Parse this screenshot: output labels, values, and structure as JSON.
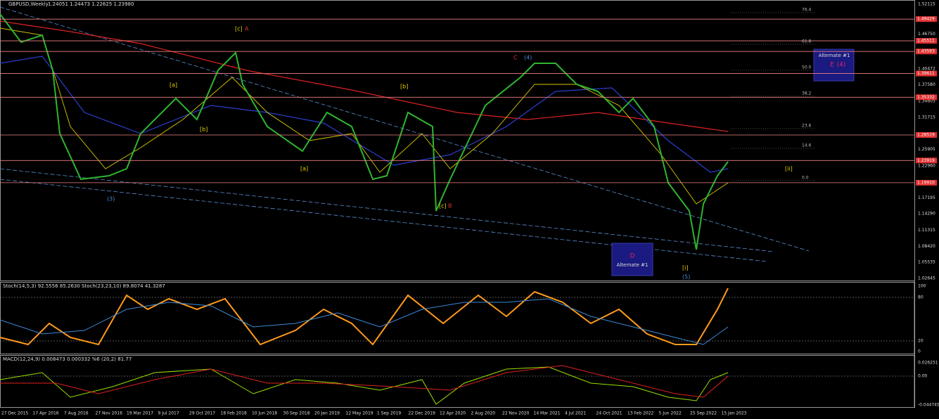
{
  "header": {
    "title": "GBPUSD,Weekly",
    "ohlc": "1.24051 1.24473 1.22625 1.23980"
  },
  "price_axis": [
    "1.52115",
    "1.46750",
    "1.40472",
    "1.37580",
    "1.34605",
    "1.31715",
    "1.25905",
    "1.22960",
    "1.17195",
    "1.14290",
    "1.11315",
    "1.08420",
    "1.05535",
    "1.02645"
  ],
  "levels": [
    "1.49429",
    "1.45511",
    "1.43593",
    "1.39611",
    "1.35332",
    "1.28519",
    "1.23919",
    "1.19910"
  ],
  "fib": [
    "76.4",
    "61.8",
    "50.0",
    "38.2",
    "23.6",
    "14.6",
    "0.0"
  ],
  "waves": [
    "[c]",
    "A",
    "C",
    "(4)",
    "[a]",
    "[b]",
    "[b]",
    "[a]",
    "(3)",
    "[c]",
    "B",
    "[i]",
    "(5)",
    "[ii]"
  ],
  "alt_top": {
    "title": "Alternate #1",
    "wave": "E",
    "degree": "(4)"
  },
  "alt_bottom": {
    "wave": "D",
    "title": "Alternate #1"
  },
  "stoch": {
    "header": "Stoch(14,5,3) 92.5556 85.2630  Stoch(23,23,10) 89.8074 41.3287",
    "axis": [
      "100",
      "80",
      "20",
      "0"
    ]
  },
  "macd": {
    "header": "MACD(12,24,9) 0.008473 0.000332  %6 (20,2) 81.77",
    "axis": [
      "0.026251",
      "0.00",
      "-0.044745"
    ]
  },
  "dates": [
    "27 Dec 2015",
    "17 Apr 2016",
    "7 Aug 2016",
    "27 Nov 2016",
    "19 Mar 2017",
    "9 Jul 2017",
    "29 Oct 2017",
    "18 Feb 2018",
    "10 Jun 2018",
    "30 Sep 2018",
    "20 Jan 2019",
    "12 May 2019",
    "1 Sep 2019",
    "22 Dec 2019",
    "12 Apr 2020",
    "2 Aug 2020",
    "22 Nov 2020",
    "14 Mar 2021",
    "4 Jul 2021",
    "24 Oct 2021",
    "13 Feb 2022",
    "5 Jun 2022",
    "25 Sep 2022",
    "15 Jan 2023"
  ]
}
